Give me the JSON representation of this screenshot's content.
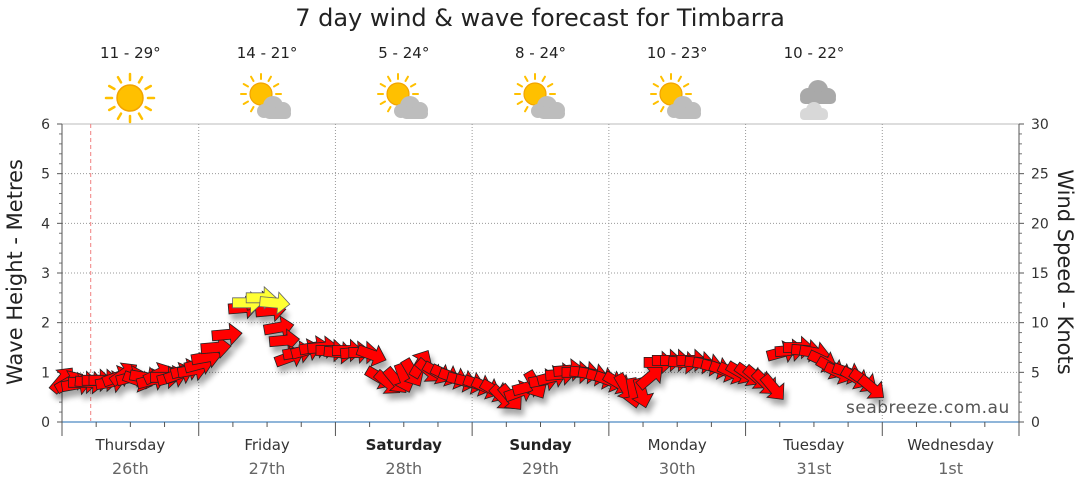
{
  "chart_data": {
    "type": "line",
    "title": "7 day wind & wave forecast for Timbarra",
    "ylabel_left": "Wave Height - Metres",
    "ylabel_right": "Wind Speed - Knots",
    "ylim_left": [
      0,
      6
    ],
    "ylim_right": [
      0,
      30
    ],
    "yticks_left": [
      "0",
      "1",
      "2",
      "3",
      "4",
      "5",
      "6"
    ],
    "yticks_right": [
      "0",
      "5",
      "10",
      "15",
      "20",
      "25",
      "30"
    ],
    "days": [
      {
        "name": "Thursday",
        "date": "26th",
        "bold": false
      },
      {
        "name": "Friday",
        "date": "27th",
        "bold": false
      },
      {
        "name": "Saturday",
        "date": "28th",
        "bold": true
      },
      {
        "name": "Sunday",
        "date": "29th",
        "bold": true
      },
      {
        "name": "Monday",
        "date": "30th",
        "bold": false
      },
      {
        "name": "Tuesday",
        "date": "31st",
        "bold": false
      },
      {
        "name": "Wednesday",
        "date": "1st",
        "bold": false
      }
    ],
    "forecast_temps": [
      "11 - 29°",
      "14 - 21°",
      "5 - 24°",
      "8 - 24°",
      "10 - 23°",
      "10 - 22°"
    ],
    "forecast_icons": [
      "sun-icon",
      "partly-cloudy-icon",
      "partly-cloudy-icon",
      "partly-cloudy-icon",
      "partly-cloudy-icon",
      "cloudy-icon"
    ],
    "wind_series": {
      "name": "",
      "points": [
        {
          "day": 0.0,
          "knots": 4.2,
          "dir": -50
        },
        {
          "day": 0.05,
          "knots": 4.0,
          "dir": -30
        },
        {
          "day": 0.1,
          "knots": 3.8,
          "dir": -10
        },
        {
          "day": 0.15,
          "knots": 4.0,
          "dir": 0
        },
        {
          "day": 0.2,
          "knots": 4.0,
          "dir": 5
        },
        {
          "day": 0.25,
          "knots": 4.2,
          "dir": 0
        },
        {
          "day": 0.3,
          "knots": 4.2,
          "dir": 0
        },
        {
          "day": 0.35,
          "knots": 4.0,
          "dir": -10
        },
        {
          "day": 0.4,
          "knots": 4.5,
          "dir": -20
        },
        {
          "day": 0.45,
          "knots": 4.8,
          "dir": -35
        },
        {
          "day": 0.5,
          "knots": 4.5,
          "dir": -15
        },
        {
          "day": 0.55,
          "knots": 4.2,
          "dir": 20
        },
        {
          "day": 0.6,
          "knots": 4.5,
          "dir": 10
        },
        {
          "day": 0.65,
          "knots": 4.2,
          "dir": -15
        },
        {
          "day": 0.7,
          "knots": 4.8,
          "dir": -25
        },
        {
          "day": 0.75,
          "knots": 4.5,
          "dir": 0
        },
        {
          "day": 0.8,
          "knots": 4.5,
          "dir": -15
        },
        {
          "day": 0.85,
          "knots": 4.8,
          "dir": -20
        },
        {
          "day": 0.9,
          "knots": 5.2,
          "dir": -15
        },
        {
          "day": 0.95,
          "knots": 5.2,
          "dir": -10
        },
        {
          "day": 1.0,
          "knots": 5.8,
          "dir": -15
        },
        {
          "day": 1.05,
          "knots": 6.5,
          "dir": -10
        },
        {
          "day": 1.12,
          "knots": 7.5,
          "dir": -5
        },
        {
          "day": 1.2,
          "knots": 8.8,
          "dir": -5
        },
        {
          "day": 1.32,
          "knots": 11.5,
          "dir": -5
        },
        {
          "day": 1.45,
          "knots": 12.0,
          "dir": -10
        },
        {
          "day": 1.52,
          "knots": 11.2,
          "dir": -5
        },
        {
          "day": 1.58,
          "knots": 9.5,
          "dir": -10
        },
        {
          "day": 1.62,
          "knots": 8.2,
          "dir": -5
        },
        {
          "day": 1.66,
          "knots": 6.5,
          "dir": -20
        },
        {
          "day": 1.72,
          "knots": 7.0,
          "dir": -10
        },
        {
          "day": 1.78,
          "knots": 7.2,
          "dir": -15
        },
        {
          "day": 1.84,
          "knots": 7.5,
          "dir": -10
        },
        {
          "day": 1.9,
          "knots": 7.5,
          "dir": -5
        },
        {
          "day": 1.96,
          "knots": 7.2,
          "dir": 0
        },
        {
          "day": 2.02,
          "knots": 7.0,
          "dir": 5
        },
        {
          "day": 2.08,
          "knots": 7.2,
          "dir": 0
        },
        {
          "day": 2.14,
          "knots": 7.0,
          "dir": -5
        },
        {
          "day": 2.2,
          "knots": 7.0,
          "dir": 0
        },
        {
          "day": 2.26,
          "knots": 6.8,
          "dir": 20
        },
        {
          "day": 2.32,
          "knots": 4.5,
          "dir": 30
        },
        {
          "day": 2.38,
          "knots": 4.0,
          "dir": 40
        },
        {
          "day": 2.44,
          "knots": 4.2,
          "dir": 50
        },
        {
          "day": 2.5,
          "knots": 4.5,
          "dir": 70
        },
        {
          "day": 2.56,
          "knots": 5.0,
          "dir": 60
        },
        {
          "day": 2.62,
          "knots": 5.8,
          "dir": -60
        },
        {
          "day": 2.68,
          "knots": 5.2,
          "dir": 40
        },
        {
          "day": 2.74,
          "knots": 5.0,
          "dir": 30
        },
        {
          "day": 2.8,
          "knots": 4.8,
          "dir": 25
        },
        {
          "day": 2.86,
          "knots": 4.5,
          "dir": 20
        },
        {
          "day": 2.92,
          "knots": 4.2,
          "dir": 15
        },
        {
          "day": 2.98,
          "knots": 4.0,
          "dir": 15
        },
        {
          "day": 3.04,
          "knots": 3.8,
          "dir": 20
        },
        {
          "day": 3.1,
          "knots": 3.5,
          "dir": 25
        },
        {
          "day": 3.16,
          "knots": 3.2,
          "dir": 30
        },
        {
          "day": 3.22,
          "knots": 2.5,
          "dir": 45
        },
        {
          "day": 3.28,
          "knots": 2.5,
          "dir": 50
        },
        {
          "day": 3.34,
          "knots": 3.0,
          "dir": -20
        },
        {
          "day": 3.4,
          "knots": 3.5,
          "dir": -15
        },
        {
          "day": 3.46,
          "knots": 3.8,
          "dir": 60
        },
        {
          "day": 3.52,
          "knots": 4.2,
          "dir": -10
        },
        {
          "day": 3.58,
          "knots": 4.5,
          "dir": -15
        },
        {
          "day": 3.64,
          "knots": 4.8,
          "dir": -5
        },
        {
          "day": 3.7,
          "knots": 5.2,
          "dir": -5
        },
        {
          "day": 3.76,
          "knots": 5.0,
          "dir": 0
        },
        {
          "day": 3.82,
          "knots": 5.0,
          "dir": 5
        },
        {
          "day": 3.88,
          "knots": 4.8,
          "dir": 10
        },
        {
          "day": 3.94,
          "knots": 4.5,
          "dir": 15
        },
        {
          "day": 4.0,
          "knots": 4.2,
          "dir": 20
        },
        {
          "day": 4.06,
          "knots": 4.0,
          "dir": 30
        },
        {
          "day": 4.12,
          "knots": 3.5,
          "dir": 60
        },
        {
          "day": 4.18,
          "knots": 3.0,
          "dir": 80
        },
        {
          "day": 4.24,
          "knots": 3.0,
          "dir": 75
        },
        {
          "day": 4.3,
          "knots": 4.5,
          "dir": -40
        },
        {
          "day": 4.36,
          "knots": 6.0,
          "dir": 0
        },
        {
          "day": 4.42,
          "knots": 6.2,
          "dir": 0
        },
        {
          "day": 4.48,
          "knots": 6.2,
          "dir": 0
        },
        {
          "day": 4.54,
          "knots": 6.0,
          "dir": 5
        },
        {
          "day": 4.6,
          "knots": 6.2,
          "dir": 0
        },
        {
          "day": 4.66,
          "knots": 6.0,
          "dir": 5
        },
        {
          "day": 4.72,
          "knots": 5.8,
          "dir": 10
        },
        {
          "day": 4.78,
          "knots": 5.5,
          "dir": 15
        },
        {
          "day": 4.84,
          "knots": 5.2,
          "dir": 20
        },
        {
          "day": 4.9,
          "knots": 5.0,
          "dir": 25
        },
        {
          "day": 4.96,
          "knots": 5.0,
          "dir": 30
        },
        {
          "day": 5.02,
          "knots": 4.8,
          "dir": 35
        },
        {
          "day": 5.08,
          "knots": 4.5,
          "dir": 40
        },
        {
          "day": 5.14,
          "knots": 4.0,
          "dir": 45
        },
        {
          "day": 5.2,
          "knots": 3.5,
          "dir": 50
        },
        {
          "day": 5.26,
          "knots": 7.0,
          "dir": -15
        },
        {
          "day": 5.32,
          "knots": 7.2,
          "dir": -5
        },
        {
          "day": 5.38,
          "knots": 7.5,
          "dir": 0
        },
        {
          "day": 5.44,
          "knots": 7.2,
          "dir": 5
        },
        {
          "day": 5.5,
          "knots": 7.0,
          "dir": 10
        },
        {
          "day": 5.56,
          "knots": 6.2,
          "dir": 25
        },
        {
          "day": 5.62,
          "knots": 5.5,
          "dir": 30
        },
        {
          "day": 5.68,
          "knots": 5.0,
          "dir": 25
        },
        {
          "day": 5.74,
          "knots": 5.0,
          "dir": 20
        },
        {
          "day": 5.8,
          "knots": 4.5,
          "dir": 30
        },
        {
          "day": 5.86,
          "knots": 4.2,
          "dir": 35
        },
        {
          "day": 5.92,
          "knots": 3.5,
          "dir": 40
        }
      ]
    },
    "swell_series": {
      "name": "",
      "points": [
        {
          "day": 1.35,
          "metres": 2.4,
          "dir": 0
        },
        {
          "day": 1.45,
          "metres": 2.5,
          "dir": 0
        },
        {
          "day": 1.55,
          "metres": 2.4,
          "dir": 5
        }
      ]
    }
  },
  "watermark": "seabreeze.com.au"
}
